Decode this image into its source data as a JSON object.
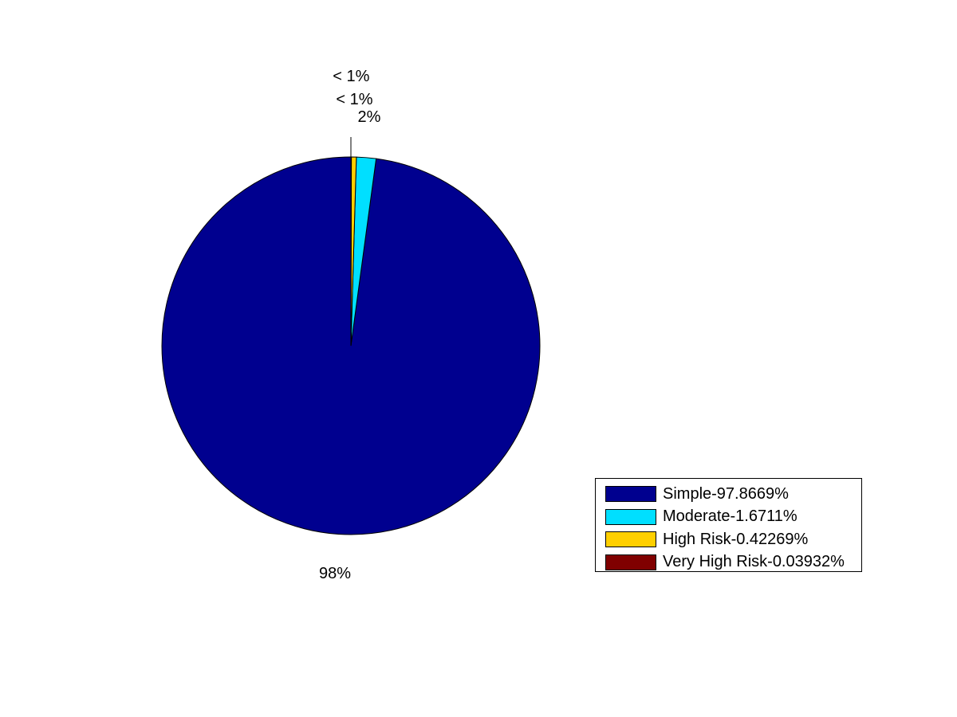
{
  "chart_data": {
    "type": "pie",
    "slices": [
      {
        "name": "Simple",
        "value": 97.8669,
        "color": "#00008F",
        "label": "98%"
      },
      {
        "name": "Moderate",
        "value": 1.6711,
        "color": "#00DFFF",
        "label": "2%"
      },
      {
        "name": "High Risk",
        "value": 0.42269,
        "color": "#FFCF00",
        "label": "< 1%"
      },
      {
        "name": "Very High Risk",
        "value": 0.03932,
        "color": "#800000",
        "label": "< 1%"
      }
    ],
    "legend": {
      "position": "bottom-right",
      "entries": [
        "Simple-97.8669%",
        "Moderate-1.6711%",
        "High Risk-0.42269%",
        "Very High Risk-0.03932%"
      ]
    }
  }
}
